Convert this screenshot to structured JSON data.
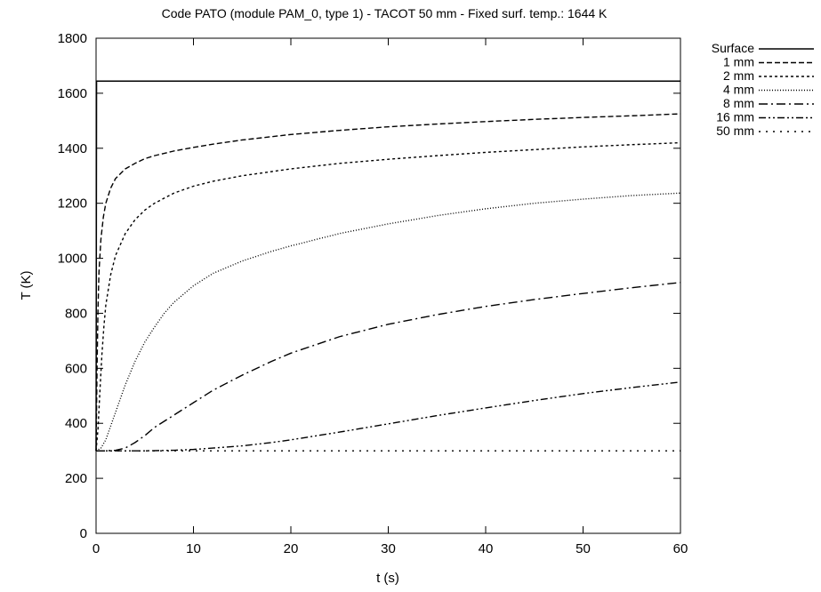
{
  "chart_data": {
    "type": "line",
    "title": "Code PATO (module PAM_0, type 1) - TACOT 50 mm - Fixed surf. temp.: 1644 K",
    "xlabel": "t (s)",
    "ylabel": "T (K)",
    "xlim": [
      0,
      60
    ],
    "ylim": [
      0,
      1800
    ],
    "xticks": [
      0,
      10,
      20,
      30,
      40,
      50,
      60
    ],
    "yticks": [
      0,
      200,
      400,
      600,
      800,
      1000,
      1200,
      1400,
      1600,
      1800
    ],
    "grid": false,
    "legend_position": "outside-top-right",
    "line_color": "#000000",
    "series": [
      {
        "name": "Surface",
        "dash": "solid",
        "points": [
          [
            0,
            300
          ],
          [
            0.05,
            1644
          ],
          [
            1,
            1644
          ],
          [
            10,
            1644
          ],
          [
            20,
            1644
          ],
          [
            30,
            1644
          ],
          [
            40,
            1644
          ],
          [
            50,
            1644
          ],
          [
            60,
            1644
          ]
        ]
      },
      {
        "name": "1 mm",
        "dash": "dashed",
        "points": [
          [
            0,
            300
          ],
          [
            0.1,
            600
          ],
          [
            0.2,
            820
          ],
          [
            0.3,
            950
          ],
          [
            0.5,
            1070
          ],
          [
            0.75,
            1150
          ],
          [
            1,
            1200
          ],
          [
            1.5,
            1255
          ],
          [
            2,
            1290
          ],
          [
            3,
            1325
          ],
          [
            4,
            1345
          ],
          [
            5,
            1362
          ],
          [
            6,
            1373
          ],
          [
            8,
            1390
          ],
          [
            10,
            1403
          ],
          [
            12,
            1415
          ],
          [
            15,
            1430
          ],
          [
            20,
            1450
          ],
          [
            25,
            1465
          ],
          [
            30,
            1478
          ],
          [
            35,
            1488
          ],
          [
            40,
            1497
          ],
          [
            45,
            1505
          ],
          [
            50,
            1512
          ],
          [
            55,
            1518
          ],
          [
            60,
            1525
          ]
        ]
      },
      {
        "name": "2 mm",
        "dash": "dotted",
        "points": [
          [
            0,
            300
          ],
          [
            0.2,
            380
          ],
          [
            0.4,
            520
          ],
          [
            0.6,
            650
          ],
          [
            0.8,
            750
          ],
          [
            1,
            830
          ],
          [
            1.5,
            940
          ],
          [
            2,
            1010
          ],
          [
            3,
            1090
          ],
          [
            4,
            1140
          ],
          [
            5,
            1175
          ],
          [
            6,
            1200
          ],
          [
            8,
            1237
          ],
          [
            10,
            1262
          ],
          [
            12,
            1280
          ],
          [
            15,
            1300
          ],
          [
            20,
            1325
          ],
          [
            25,
            1345
          ],
          [
            30,
            1360
          ],
          [
            35,
            1373
          ],
          [
            40,
            1385
          ],
          [
            45,
            1395
          ],
          [
            50,
            1405
          ],
          [
            55,
            1413
          ],
          [
            60,
            1420
          ]
        ]
      },
      {
        "name": "4 mm",
        "dash": "fine-dotted",
        "points": [
          [
            0,
            300
          ],
          [
            0.5,
            310
          ],
          [
            1,
            340
          ],
          [
            1.5,
            390
          ],
          [
            2,
            440
          ],
          [
            3,
            540
          ],
          [
            4,
            625
          ],
          [
            5,
            695
          ],
          [
            6,
            750
          ],
          [
            7,
            800
          ],
          [
            8,
            840
          ],
          [
            10,
            900
          ],
          [
            12,
            945
          ],
          [
            15,
            990
          ],
          [
            18,
            1025
          ],
          [
            20,
            1045
          ],
          [
            25,
            1090
          ],
          [
            30,
            1125
          ],
          [
            35,
            1155
          ],
          [
            40,
            1180
          ],
          [
            45,
            1200
          ],
          [
            50,
            1215
          ],
          [
            55,
            1228
          ],
          [
            60,
            1237
          ]
        ]
      },
      {
        "name": "8 mm",
        "dash": "dash-dot",
        "points": [
          [
            0,
            300
          ],
          [
            1,
            300
          ],
          [
            2,
            302
          ],
          [
            3,
            310
          ],
          [
            4,
            330
          ],
          [
            5,
            355
          ],
          [
            6,
            385
          ],
          [
            8,
            430
          ],
          [
            10,
            475
          ],
          [
            12,
            520
          ],
          [
            15,
            575
          ],
          [
            18,
            625
          ],
          [
            20,
            655
          ],
          [
            25,
            715
          ],
          [
            30,
            760
          ],
          [
            35,
            795
          ],
          [
            40,
            825
          ],
          [
            45,
            850
          ],
          [
            50,
            872
          ],
          [
            55,
            893
          ],
          [
            60,
            912
          ]
        ]
      },
      {
        "name": "16 mm",
        "dash": "dash-dot-dot",
        "points": [
          [
            0,
            300
          ],
          [
            5,
            300
          ],
          [
            8,
            302
          ],
          [
            10,
            305
          ],
          [
            12,
            310
          ],
          [
            15,
            318
          ],
          [
            18,
            330
          ],
          [
            20,
            340
          ],
          [
            25,
            368
          ],
          [
            30,
            398
          ],
          [
            35,
            428
          ],
          [
            40,
            456
          ],
          [
            45,
            483
          ],
          [
            50,
            508
          ],
          [
            55,
            530
          ],
          [
            60,
            550
          ]
        ]
      },
      {
        "name": "50 mm",
        "dash": "sparse-dotted",
        "points": [
          [
            0,
            300
          ],
          [
            60,
            300
          ]
        ]
      }
    ]
  }
}
